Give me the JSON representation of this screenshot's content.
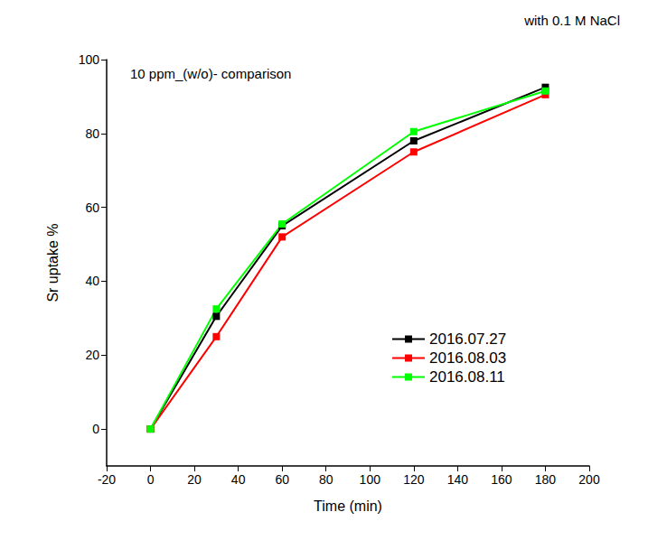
{
  "chart_data": {
    "type": "line",
    "title": "with 0.1 M NaCl",
    "annotation": "10 ppm_(w/o)- comparison",
    "x_label": "Time (min)",
    "y_label": "Sr uptake %",
    "x": [
      0,
      30,
      60,
      120,
      180
    ],
    "series": [
      {
        "name": "2016.07.27",
        "color": "#000000",
        "values": [
          0,
          30.5,
          55,
          78,
          92.5
        ]
      },
      {
        "name": "2016.08.03",
        "color": "#ff0000",
        "values": [
          0,
          25,
          52,
          75,
          90.5
        ]
      },
      {
        "name": "2016.08.11",
        "color": "#00ff00",
        "values": [
          0,
          32.5,
          55.5,
          80.5,
          91.5
        ]
      }
    ],
    "xlim": [
      -20,
      200
    ],
    "xticks": [
      -20,
      0,
      20,
      40,
      60,
      80,
      100,
      120,
      140,
      160,
      180,
      200
    ],
    "ylim": [
      -10,
      100
    ],
    "yticks": [
      0,
      20,
      40,
      60,
      80,
      100
    ],
    "grid": false,
    "legend": "lower right",
    "marker": "square",
    "line_style": "solid"
  }
}
